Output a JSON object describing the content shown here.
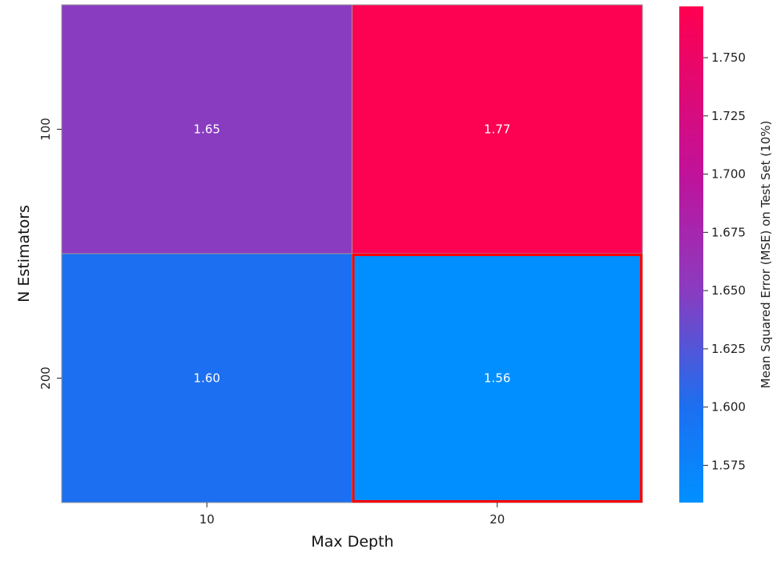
{
  "chart_data": {
    "type": "heatmap",
    "title": "",
    "xlabel": "Max Depth",
    "ylabel": "N Estimators",
    "x_categories": [
      "10",
      "20"
    ],
    "y_categories": [
      "100",
      "200"
    ],
    "values": [
      [
        1.65,
        1.77
      ],
      [
        1.6,
        1.56
      ]
    ],
    "cell_labels": [
      [
        "1.65",
        "1.77"
      ],
      [
        "1.60",
        "1.56"
      ]
    ],
    "highlighted_cell": {
      "x": "20",
      "y": "200",
      "color": "#ff0000"
    },
    "colorbar": {
      "label": "Mean Squared Error (MSE) on Test Set (10%)",
      "range": [
        1.559,
        1.772
      ],
      "ticks": [
        "1.575",
        "1.600",
        "1.625",
        "1.650",
        "1.675",
        "1.700",
        "1.725",
        "1.750"
      ],
      "tick_values": [
        1.575,
        1.6,
        1.625,
        1.65,
        1.675,
        1.7,
        1.725,
        1.75
      ],
      "colormap": [
        {
          "v": 1.559,
          "color": "#0090ff"
        },
        {
          "v": 1.6,
          "color": "#1c6ff0"
        },
        {
          "v": 1.65,
          "color": "#8a3cc0"
        },
        {
          "v": 1.7,
          "color": "#c0129a"
        },
        {
          "v": 1.772,
          "color": "#ff0050"
        }
      ]
    },
    "grid": false,
    "legend": "colorbar-right"
  }
}
